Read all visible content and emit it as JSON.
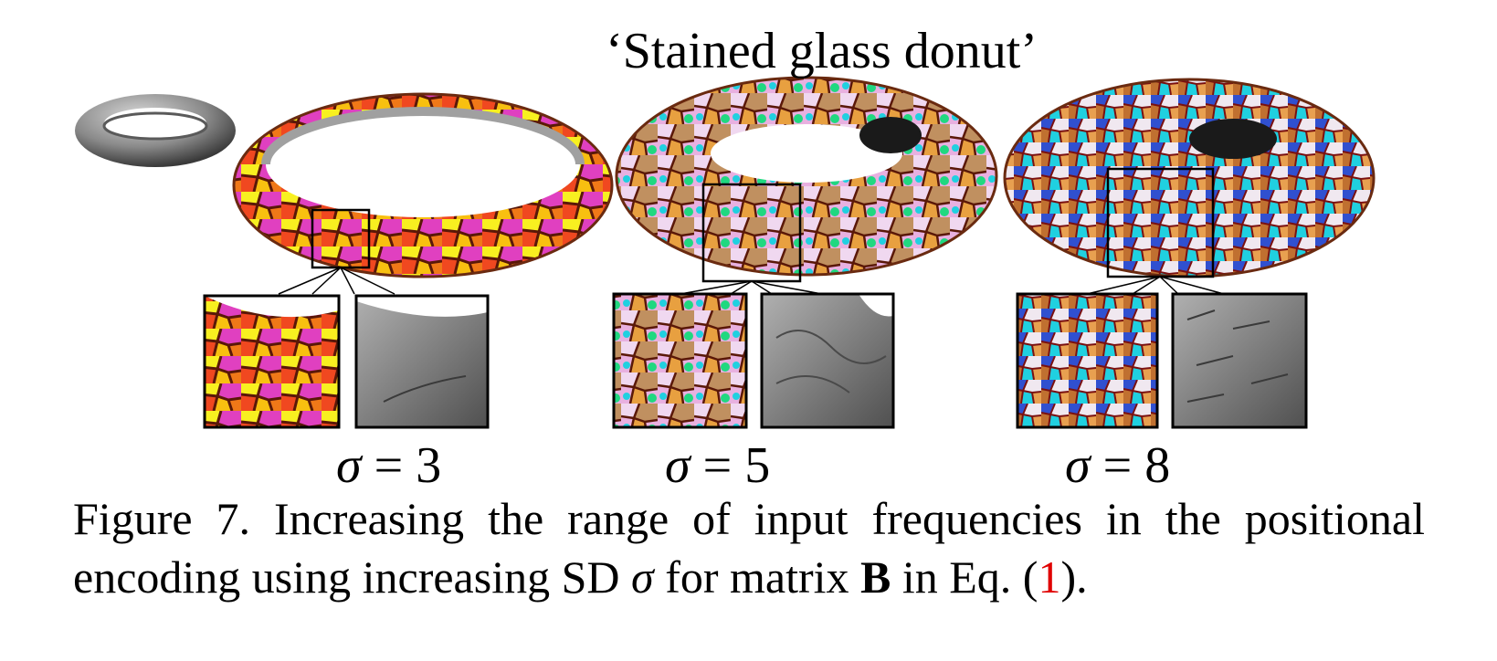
{
  "figure": {
    "title": "‘Stained glass donut’",
    "panels": [
      {
        "sigma_symbol": "σ",
        "sigma_eq": " = 3"
      },
      {
        "sigma_symbol": "σ",
        "sigma_eq": " = 5"
      },
      {
        "sigma_symbol": "σ",
        "sigma_eq": " = 8"
      }
    ],
    "caption": {
      "label": "Figure 7.",
      "text_a": " Increasing the range of input frequencies in the positional encoding using increasing SD ",
      "sigma": "σ",
      "text_b": " for matrix ",
      "matrix": "B",
      "text_c": " in Eq. (",
      "ref": "1",
      "text_d": ")."
    },
    "colors": {
      "glass_orange": "#f07818",
      "glass_yellow": "#f8f020",
      "glass_magenta": "#e040c0",
      "lead": "#5a1808",
      "frosting_pink": "#e8b0e0",
      "sprinkle_green": "#20d880",
      "glass_blue": "#3050d0",
      "glass_cyan": "#20d0e0",
      "gray_mesh": "#808080",
      "ref_red": "#e00000"
    }
  }
}
